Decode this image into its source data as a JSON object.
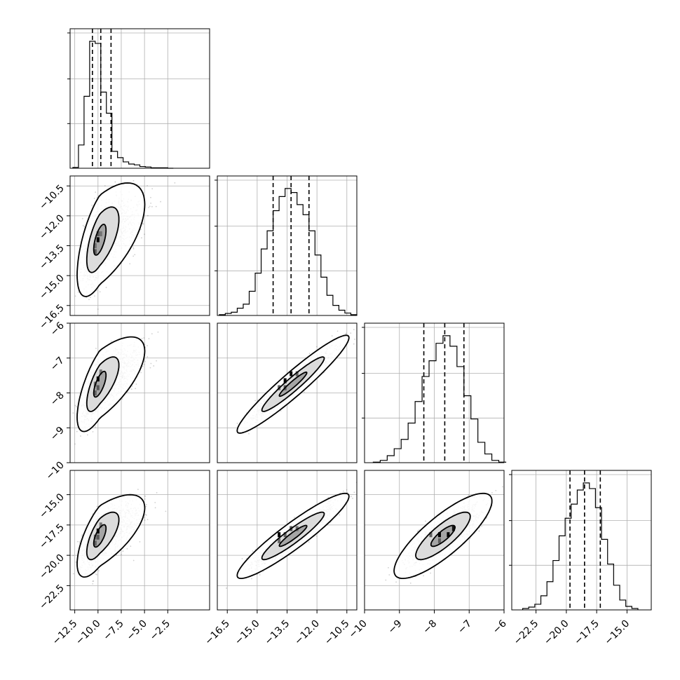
{
  "chart_data": {
    "type": "corner",
    "params": [
      {
        "lim": [
          -13.0,
          2.0
        ],
        "ticks": [
          -12.5,
          -10.0,
          -7.5,
          -5.0,
          -2.5
        ],
        "tick_labels": [
          "−12.5",
          "−10.0",
          "−7.5",
          "−5.0",
          "−2.5"
        ],
        "quantiles": [
          -10.6,
          -9.7,
          -8.6
        ]
      },
      {
        "lim": [
          -17.0,
          -10.0
        ],
        "ticks": [
          -16.5,
          -15.0,
          -13.5,
          -12.0,
          -10.5
        ],
        "tick_labels": [
          "−16.5",
          "−15.0",
          "−13.5",
          "−12.0",
          "−10.5"
        ],
        "quantiles": [
          -14.2,
          -13.3,
          -12.4
        ]
      },
      {
        "lim": [
          -10.0,
          -6.0
        ],
        "ticks": [
          -10,
          -9,
          -8,
          -7,
          -6
        ],
        "tick_labels": [
          "−10",
          "−9",
          "−8",
          "−7",
          "−6"
        ],
        "quantiles": [
          -8.3,
          -7.7,
          -7.15
        ]
      },
      {
        "lim": [
          -24.5,
          -13.0
        ],
        "ticks": [
          -22.5,
          -20.0,
          -17.5,
          -15.0
        ],
        "tick_labels": [
          "−22.5",
          "−20.0",
          "−17.5",
          "−15.0"
        ],
        "quantiles": [
          -19.7,
          -18.5,
          -17.2
        ]
      }
    ],
    "histograms": [
      {
        "param": 0,
        "edges": [
          -12.7,
          -12.1,
          -11.5,
          -10.9,
          -10.3,
          -9.7,
          -9.1,
          -8.5,
          -7.9,
          -7.3,
          -6.7,
          -6.1,
          -5.5,
          -4.9,
          -4.3,
          -3.7,
          -3.1,
          -2.5,
          -1.9
        ],
        "counts": [
          2,
          55,
          170,
          300,
          295,
          180,
          130,
          40,
          25,
          15,
          10,
          8,
          4,
          3,
          1,
          1,
          1,
          0
        ]
      },
      {
        "param": 1,
        "edges": [
          -16.9,
          -16.6,
          -16.3,
          -16.0,
          -15.7,
          -15.4,
          -15.1,
          -14.8,
          -14.5,
          -14.2,
          -13.9,
          -13.6,
          -13.3,
          -13.0,
          -12.7,
          -12.4,
          -12.1,
          -11.8,
          -11.5,
          -11.2,
          -10.9,
          -10.6,
          -10.3,
          -10.0
        ],
        "counts": [
          2,
          5,
          8,
          18,
          28,
          60,
          105,
          165,
          210,
          260,
          295,
          315,
          305,
          275,
          250,
          210,
          150,
          95,
          50,
          25,
          13,
          6,
          2
        ]
      },
      {
        "param": 2,
        "edges": [
          -9.75,
          -9.55,
          -9.35,
          -9.15,
          -8.95,
          -8.75,
          -8.55,
          -8.35,
          -8.15,
          -7.95,
          -7.75,
          -7.55,
          -7.35,
          -7.15,
          -6.95,
          -6.75,
          -6.55,
          -6.35,
          -6.15,
          -5.95
        ],
        "counts": [
          1,
          4,
          12,
          24,
          40,
          68,
          105,
          148,
          175,
          205,
          218,
          200,
          165,
          115,
          75,
          35,
          15,
          4,
          1
        ]
      },
      {
        "param": 3,
        "edges": [
          -23.6,
          -23.1,
          -22.6,
          -22.1,
          -21.6,
          -21.1,
          -20.6,
          -20.1,
          -19.6,
          -19.1,
          -18.6,
          -18.1,
          -17.6,
          -17.1,
          -16.6,
          -16.1,
          -15.6,
          -15.1,
          -14.6,
          -14.1
        ],
        "counts": [
          2,
          4,
          8,
          20,
          40,
          70,
          105,
          130,
          150,
          170,
          180,
          172,
          145,
          100,
          65,
          35,
          14,
          5,
          2
        ]
      }
    ],
    "pairs": [
      {
        "x_param": 0,
        "y_param": 1,
        "mean": [
          -9.8,
          -13.2
        ],
        "sd": [
          0.9,
          1.05
        ],
        "rho": 0.62,
        "skew_x": 1.3,
        "contours": [
          {
            "scale": 0.32,
            "t": 0.0
          },
          {
            "scale": 0.68,
            "t": 0.35
          },
          {
            "scale": 1.18,
            "t": 0.75
          }
        ],
        "bins": [
          {
            "x": -10.0,
            "y": -13.2,
            "shade": 1.0
          },
          {
            "x": -10.0,
            "y": -12.9,
            "shade": 0.55
          },
          {
            "x": -10.3,
            "y": -13.8,
            "shade": 0.55
          },
          {
            "x": -10.3,
            "y": -13.5,
            "shade": 0.42
          },
          {
            "x": -9.7,
            "y": -12.9,
            "shade": 0.4
          }
        ]
      },
      {
        "x_param": 0,
        "y_param": 2,
        "mean": [
          -9.8,
          -7.75
        ],
        "sd": [
          0.9,
          0.5
        ],
        "rho": 0.7,
        "skew_x": 1.3,
        "contours": [
          {
            "scale": 0.32,
            "t": 0.0
          },
          {
            "scale": 0.68,
            "t": 0.35
          },
          {
            "scale": 1.18,
            "t": 0.75
          }
        ],
        "bins": [
          {
            "x": -10.0,
            "y": -7.6,
            "shade": 1.0
          },
          {
            "x": -10.0,
            "y": -7.85,
            "shade": 0.55
          },
          {
            "x": -10.3,
            "y": -8.0,
            "shade": 0.5
          },
          {
            "x": -10.3,
            "y": -7.75,
            "shade": 0.4
          },
          {
            "x": -9.7,
            "y": -7.4,
            "shade": 0.4
          }
        ]
      },
      {
        "x_param": 0,
        "y_param": 3,
        "mean": [
          -9.8,
          -18.4
        ],
        "sd": [
          0.9,
          1.25
        ],
        "rho": 0.68,
        "skew_x": 1.3,
        "contours": [
          {
            "scale": 0.32,
            "t": 0.0
          },
          {
            "scale": 0.68,
            "t": 0.35
          },
          {
            "scale": 1.18,
            "t": 0.75
          }
        ],
        "bins": [
          {
            "x": -10.0,
            "y": -18.0,
            "shade": 1.0
          },
          {
            "x": -10.0,
            "y": -18.5,
            "shade": 0.55
          },
          {
            "x": -10.3,
            "y": -19.0,
            "shade": 0.5
          },
          {
            "x": -10.3,
            "y": -18.5,
            "shade": 0.4
          },
          {
            "x": -9.7,
            "y": -17.5,
            "shade": 0.4
          }
        ]
      },
      {
        "x_param": 1,
        "y_param": 2,
        "mean": [
          -13.2,
          -7.75
        ],
        "sd": [
          1.0,
          0.5
        ],
        "rho": 0.95,
        "skew_x": 0,
        "contours": [
          {
            "scale": 0.3,
            "t": 0.0
          },
          {
            "scale": 0.68,
            "t": 0.0
          },
          {
            "scale": 1.22,
            "t": 0.0
          }
        ],
        "bins": [
          {
            "x": -13.6,
            "y": -7.65,
            "shade": 1.0
          },
          {
            "x": -13.3,
            "y": -7.45,
            "shade": 0.95
          },
          {
            "x": -13.6,
            "y": -7.85,
            "shade": 0.55
          },
          {
            "x": -13.9,
            "y": -7.85,
            "shade": 0.5
          },
          {
            "x": -13.0,
            "y": -7.45,
            "shade": 0.5
          }
        ]
      },
      {
        "x_param": 1,
        "y_param": 3,
        "mean": [
          -13.2,
          -18.4
        ],
        "sd": [
          1.0,
          1.25
        ],
        "rho": 0.93,
        "skew_x": 0,
        "contours": [
          {
            "scale": 0.3,
            "t": 0.0
          },
          {
            "scale": 0.68,
            "t": 0.0
          },
          {
            "scale": 1.22,
            "t": 0.0
          }
        ],
        "bins": [
          {
            "x": -13.9,
            "y": -18.3,
            "shade": 1.0
          },
          {
            "x": -13.3,
            "y": -17.8,
            "shade": 0.55
          },
          {
            "x": -13.6,
            "y": -18.3,
            "shade": 0.5
          },
          {
            "x": -13.9,
            "y": -18.8,
            "shade": 0.45
          },
          {
            "x": -13.0,
            "y": -17.8,
            "shade": 0.45
          }
        ]
      },
      {
        "x_param": 2,
        "y_param": 3,
        "mean": [
          -7.75,
          -18.4
        ],
        "sd": [
          0.5,
          1.25
        ],
        "rho": 0.82,
        "skew_x": 0,
        "contours": [
          {
            "scale": 0.3,
            "t": 0.0
          },
          {
            "scale": 0.68,
            "t": 0.0
          },
          {
            "scale": 1.22,
            "t": 0.0
          }
        ],
        "bins": [
          {
            "x": -7.85,
            "y": -18.3,
            "shade": 1.0
          },
          {
            "x": -7.6,
            "y": -18.3,
            "shade": 1.0
          },
          {
            "x": -7.45,
            "y": -17.8,
            "shade": 0.9
          },
          {
            "x": -7.85,
            "y": -18.8,
            "shade": 0.5
          },
          {
            "x": -8.1,
            "y": -18.3,
            "shade": 0.5
          }
        ]
      }
    ],
    "grid": true,
    "colors": {
      "line": "#000000",
      "points": "#555555",
      "grid": "#b0b0b0",
      "frame": "#000000"
    }
  }
}
